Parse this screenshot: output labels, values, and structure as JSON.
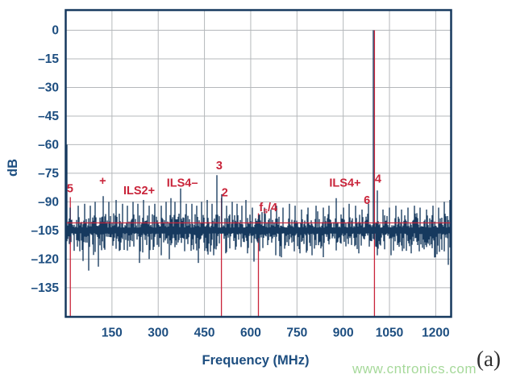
{
  "figure": {
    "watermark": "www.cntronics.com",
    "panel_label": "(a)"
  },
  "chart_data": {
    "type": "line",
    "title": "",
    "xlabel": "Frequency (MHz)",
    "ylabel": "dB",
    "x_range_mhz": [
      0,
      1250
    ],
    "y_range_db": [
      -150,
      10
    ],
    "x_ticks": [
      150,
      300,
      450,
      600,
      750,
      900,
      1050,
      1200
    ],
    "y_ticks": [
      0,
      -15,
      -30,
      -45,
      -60,
      -75,
      -90,
      -105,
      -120,
      -135
    ],
    "y_tick_labels": [
      "0",
      "–15",
      "–30",
      "–45",
      "–60",
      "–75",
      "–90",
      "–105",
      "–120",
      "–135"
    ],
    "grid": true,
    "legend": null,
    "noise_floor_db": -104,
    "reference_line_db": -101,
    "fundamental": {
      "freq_mhz": 998,
      "db": 0
    },
    "dc_spike": {
      "freq_mhz": 3,
      "db": -60
    },
    "spurs": [
      {
        "label": "5",
        "freq_mhz": 15,
        "peak_db": -93,
        "label_pos": {
          "freq": 14,
          "db": -85
        }
      },
      {
        "label": "+",
        "freq_mhz": 122,
        "peak_db": -87,
        "label_pos": {
          "freq": 120,
          "db": -81
        }
      },
      {
        "label": "ILS2+",
        "freq_mhz": 252,
        "peak_db": -89,
        "label_pos": {
          "freq": 238,
          "db": -86
        }
      },
      {
        "label": "ILS4–",
        "freq_mhz": 372,
        "peak_db": -83,
        "label_pos": {
          "freq": 378,
          "db": -82
        }
      },
      {
        "label": "3",
        "freq_mhz": 491,
        "peak_db": -76,
        "label_pos": {
          "freq": 498,
          "db": -73
        }
      },
      {
        "label": "2",
        "freq_mhz": 506,
        "peak_db": -86,
        "label_pos": {
          "freq": 516,
          "db": -87
        }
      },
      {
        "label": "fs/4",
        "subscript": true,
        "freq_mhz": 625,
        "peak_db": -97,
        "label_pos": {
          "freq": 657,
          "db": -95
        }
      },
      {
        "label": "ILS4+",
        "freq_mhz": 878,
        "peak_db": -88,
        "label_pos": {
          "freq": 906,
          "db": -82
        }
      },
      {
        "label": "6",
        "freq_mhz": 982,
        "peak_db": -91,
        "label_pos": {
          "freq": 977,
          "db": -91
        }
      },
      {
        "label": null,
        "freq_mhz": 998,
        "peak_db": 0,
        "label_pos": null
      },
      {
        "label": "4",
        "freq_mhz": 1012,
        "peak_db": -84,
        "label_pos": {
          "freq": 1013,
          "db": -80
        }
      }
    ],
    "marker_lines": [
      {
        "freq_mhz": 15,
        "from_db": -87.5
      },
      {
        "freq_mhz": 505,
        "from_db": -88
      },
      {
        "freq_mhz": 625,
        "from_db": -96
      },
      {
        "freq_mhz": 999,
        "from_db": 0
      }
    ],
    "texture_spikes": [
      [
        3,
        -60
      ],
      [
        40,
        -92
      ],
      [
        61,
        -91
      ],
      [
        80,
        -92
      ],
      [
        95,
        -90
      ],
      [
        140,
        -90
      ],
      [
        163,
        -89
      ],
      [
        185,
        -91
      ],
      [
        200,
        -92
      ],
      [
        218,
        -90
      ],
      [
        235,
        -91
      ],
      [
        270,
        -92
      ],
      [
        290,
        -91
      ],
      [
        310,
        -92
      ],
      [
        325,
        -90
      ],
      [
        340,
        -88
      ],
      [
        355,
        -90
      ],
      [
        390,
        -91
      ],
      [
        408,
        -91
      ],
      [
        425,
        -92
      ],
      [
        440,
        -90
      ],
      [
        458,
        -89
      ],
      [
        475,
        -91
      ],
      [
        522,
        -92
      ],
      [
        540,
        -90
      ],
      [
        555,
        -91
      ],
      [
        572,
        -92
      ],
      [
        585,
        -89
      ],
      [
        605,
        -93
      ],
      [
        645,
        -93
      ],
      [
        665,
        -94
      ],
      [
        685,
        -92
      ],
      [
        705,
        -93
      ],
      [
        725,
        -91
      ],
      [
        745,
        -92
      ],
      [
        765,
        -94
      ],
      [
        785,
        -93
      ],
      [
        812,
        -92
      ],
      [
        835,
        -93
      ],
      [
        855,
        -92
      ],
      [
        900,
        -93
      ],
      [
        920,
        -91
      ],
      [
        940,
        -92
      ],
      [
        960,
        -94
      ],
      [
        1030,
        -94
      ],
      [
        1050,
        -93
      ],
      [
        1070,
        -92
      ],
      [
        1090,
        -94
      ],
      [
        1110,
        -93
      ],
      [
        1130,
        -92
      ],
      [
        1150,
        -93
      ],
      [
        1170,
        -94
      ],
      [
        1190,
        -92
      ],
      [
        1210,
        -93
      ],
      [
        1228,
        -90
      ],
      [
        1245,
        -89
      ]
    ],
    "down_spikes": [
      [
        55,
        -121
      ],
      [
        75,
        -126
      ],
      [
        107,
        -124
      ],
      [
        240,
        -122
      ],
      [
        310,
        -118
      ],
      [
        335,
        -120
      ],
      [
        430,
        -122
      ],
      [
        480,
        -118
      ],
      [
        520,
        -117
      ],
      [
        590,
        -117
      ],
      [
        680,
        -118
      ],
      [
        760,
        -117
      ],
      [
        800,
        -118
      ],
      [
        835,
        -119
      ],
      [
        950,
        -117
      ],
      [
        1010,
        -118
      ],
      [
        1055,
        -118
      ],
      [
        1120,
        -117
      ],
      [
        1200,
        -119
      ],
      [
        1240,
        -123
      ]
    ],
    "colors": {
      "trace_navy": "#16395e",
      "label_navy": "#1d4e80",
      "marker_red": "#c9243a",
      "grid_gray": "#b5b8bb",
      "watermark_green": "#a6d99a"
    }
  }
}
